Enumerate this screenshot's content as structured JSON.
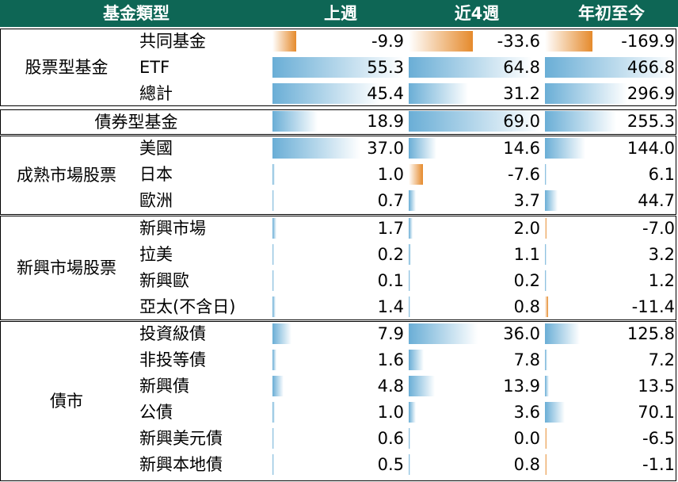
{
  "header": {
    "category": "基金類型",
    "col1": "上週",
    "col2": "近4週",
    "col3": "年初至今"
  },
  "colors": {
    "header_bg": "#0e6655",
    "positive_bar": "#6aaed6",
    "negative_bar": "#e58a2c"
  },
  "groups": [
    {
      "name": "股票型基金",
      "rows": [
        {
          "label": "共同基金",
          "values": [
            "-9.9",
            "-33.6",
            "-169.9"
          ]
        },
        {
          "label": "ETF",
          "values": [
            "55.3",
            "64.8",
            "466.8"
          ]
        },
        {
          "label": "總計",
          "values": [
            "45.4",
            "31.2",
            "296.9"
          ]
        }
      ]
    },
    {
      "name": "債券型基金",
      "rows": [
        {
          "label": "",
          "values": [
            "18.9",
            "69.0",
            "255.3"
          ]
        }
      ]
    },
    {
      "name": "成熟市場股票",
      "rows": [
        {
          "label": "美國",
          "values": [
            "37.0",
            "14.6",
            "144.0"
          ]
        },
        {
          "label": "日本",
          "values": [
            "1.0",
            "-7.6",
            "6.1"
          ]
        },
        {
          "label": "歐洲",
          "values": [
            "0.7",
            "3.7",
            "44.7"
          ]
        }
      ]
    },
    {
      "name": "新興市場股票",
      "rows": [
        {
          "label": "新興市場",
          "values": [
            "1.7",
            "2.0",
            "-7.0"
          ]
        },
        {
          "label": "拉美",
          "values": [
            "0.2",
            "1.1",
            "3.2"
          ]
        },
        {
          "label": "新興歐",
          "values": [
            "0.1",
            "0.2",
            "1.2"
          ]
        },
        {
          "label": "亞太(不含日)",
          "values": [
            "1.4",
            "0.8",
            "-11.4"
          ]
        }
      ]
    },
    {
      "name": "債市",
      "rows": [
        {
          "label": "投資級債",
          "values": [
            "7.9",
            "36.0",
            "125.8"
          ]
        },
        {
          "label": "非投等債",
          "values": [
            "1.6",
            "7.8",
            "7.2"
          ]
        },
        {
          "label": "新興債",
          "values": [
            "4.8",
            "13.9",
            "13.5"
          ]
        },
        {
          "label": "公債",
          "values": [
            "1.0",
            "3.6",
            "70.1"
          ]
        },
        {
          "label": "新興美元債",
          "values": [
            "0.6",
            "0.0",
            "-6.5"
          ]
        },
        {
          "label": "新興本地債",
          "values": [
            "0.5",
            "0.8",
            "-1.1"
          ]
        }
      ]
    }
  ]
}
